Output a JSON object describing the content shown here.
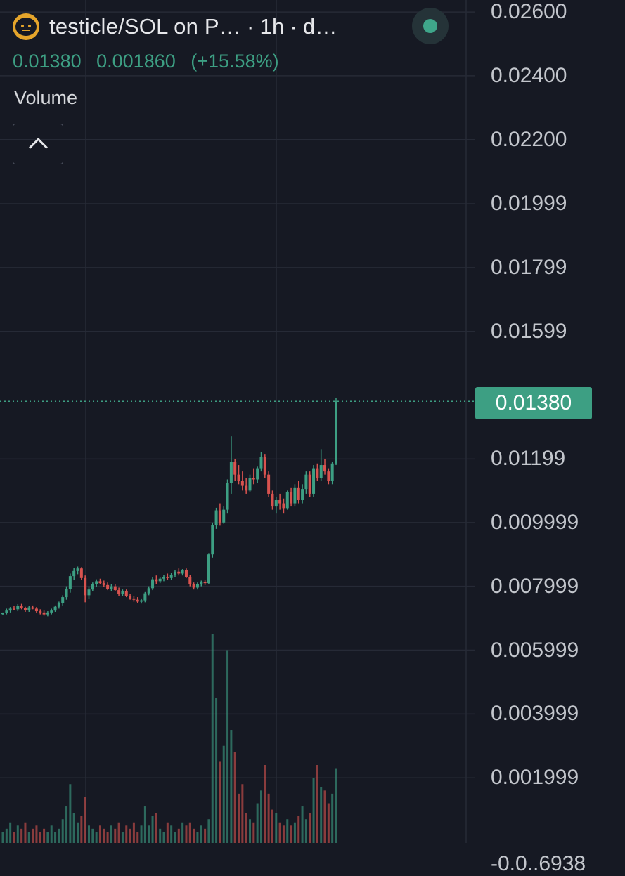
{
  "header": {
    "logo_icon": "token-face-icon",
    "title": "testicle/SOL on P…",
    "interval": "1h",
    "source": "d…",
    "status_icon": "live-status-dot-icon"
  },
  "quote": {
    "last": "0.01380",
    "change": "0.001860",
    "change_pct": "(+15.58%)"
  },
  "volume_label": "Volume",
  "collapse_icon": "chevron-up-icon",
  "last_price_label": "0.01380",
  "colors": {
    "up": "#3d9f83",
    "down": "#d9534f",
    "background": "#161923",
    "grid": "#262a36"
  },
  "chart_data": {
    "type": "candlestick",
    "y_tick_labels": [
      "0.02600",
      "0.02400",
      "0.02200",
      "0.01999",
      "0.01799",
      "0.01599",
      "0.01199",
      "0.009999",
      "0.007999",
      "0.005999",
      "0.003999",
      "0.001999",
      "-0.0..6938"
    ],
    "y_ticks": [
      0.026,
      0.024,
      0.022,
      0.01999,
      0.01799,
      0.01599,
      0.01199,
      0.009999,
      0.007999,
      0.005999,
      0.003999,
      0.001999,
      -0.0006938
    ],
    "ylim": [
      -0.0006938,
      0.026
    ],
    "last_price": 0.0138,
    "grid": true,
    "candles": [
      [
        0.00714,
        0.00718,
        0.0071,
        0.00716
      ],
      [
        0.00716,
        0.0073,
        0.00712,
        0.00724
      ],
      [
        0.00724,
        0.00735,
        0.00718,
        0.0073
      ],
      [
        0.0073,
        0.00738,
        0.00726,
        0.00728
      ],
      [
        0.00728,
        0.00744,
        0.00722,
        0.00738
      ],
      [
        0.00738,
        0.00745,
        0.00728,
        0.00732
      ],
      [
        0.00732,
        0.00736,
        0.0072,
        0.00726
      ],
      [
        0.00726,
        0.00738,
        0.0072,
        0.00734
      ],
      [
        0.00734,
        0.0074,
        0.00728,
        0.0073
      ],
      [
        0.0073,
        0.00735,
        0.00716,
        0.00722
      ],
      [
        0.00722,
        0.00728,
        0.00712,
        0.00718
      ],
      [
        0.00718,
        0.00724,
        0.00708,
        0.00712
      ],
      [
        0.00712,
        0.00722,
        0.00706,
        0.00718
      ],
      [
        0.00718,
        0.0073,
        0.00712,
        0.00724
      ],
      [
        0.00724,
        0.0074,
        0.0072,
        0.00736
      ],
      [
        0.00736,
        0.00752,
        0.0073,
        0.00748
      ],
      [
        0.00748,
        0.00772,
        0.0074,
        0.00766
      ],
      [
        0.00766,
        0.008,
        0.00758,
        0.00792
      ],
      [
        0.00792,
        0.0084,
        0.0078,
        0.00832
      ],
      [
        0.00832,
        0.00858,
        0.0082,
        0.00848
      ],
      [
        0.00848,
        0.00862,
        0.00838,
        0.00856
      ],
      [
        0.00856,
        0.0086,
        0.0082,
        0.00826
      ],
      [
        0.00826,
        0.00834,
        0.0075,
        0.00772
      ],
      [
        0.00772,
        0.008,
        0.0076,
        0.0079
      ],
      [
        0.0079,
        0.00812,
        0.00784,
        0.00806
      ],
      [
        0.00806,
        0.00822,
        0.00798,
        0.00816
      ],
      [
        0.00816,
        0.00824,
        0.00806,
        0.0081
      ],
      [
        0.0081,
        0.00818,
        0.00798,
        0.00804
      ],
      [
        0.00804,
        0.00812,
        0.00788,
        0.00792
      ],
      [
        0.00792,
        0.00808,
        0.00786,
        0.008
      ],
      [
        0.008,
        0.00806,
        0.00784,
        0.00788
      ],
      [
        0.00788,
        0.00796,
        0.0077,
        0.00776
      ],
      [
        0.00776,
        0.0079,
        0.0077,
        0.00784
      ],
      [
        0.00784,
        0.0079,
        0.00766,
        0.0077
      ],
      [
        0.0077,
        0.00776,
        0.00758,
        0.00762
      ],
      [
        0.00762,
        0.0077,
        0.00752,
        0.00758
      ],
      [
        0.00758,
        0.00766,
        0.00748,
        0.00752
      ],
      [
        0.00752,
        0.00762,
        0.00746,
        0.00756
      ],
      [
        0.00756,
        0.00782,
        0.0075,
        0.00778
      ],
      [
        0.00778,
        0.008,
        0.00772,
        0.00794
      ],
      [
        0.00794,
        0.0083,
        0.00788,
        0.00822
      ],
      [
        0.00822,
        0.00834,
        0.00808,
        0.00816
      ],
      [
        0.00816,
        0.00828,
        0.0081,
        0.00824
      ],
      [
        0.00824,
        0.00836,
        0.00816,
        0.0083
      ],
      [
        0.0083,
        0.0084,
        0.0082,
        0.00826
      ],
      [
        0.00826,
        0.00842,
        0.0082,
        0.00836
      ],
      [
        0.00836,
        0.00852,
        0.00828,
        0.00846
      ],
      [
        0.00846,
        0.00856,
        0.00834,
        0.0084
      ],
      [
        0.0084,
        0.00854,
        0.00834,
        0.0085
      ],
      [
        0.0085,
        0.00856,
        0.00826,
        0.0083
      ],
      [
        0.0083,
        0.00836,
        0.008,
        0.00806
      ],
      [
        0.00806,
        0.00812,
        0.0079,
        0.00796
      ],
      [
        0.00796,
        0.00812,
        0.0079,
        0.00808
      ],
      [
        0.00808,
        0.00818,
        0.008,
        0.00814
      ],
      [
        0.00814,
        0.0082,
        0.00804,
        0.0081
      ],
      [
        0.0081,
        0.00904,
        0.00806,
        0.009
      ],
      [
        0.009,
        0.01,
        0.0089,
        0.00992
      ],
      [
        0.00992,
        0.01046,
        0.0098,
        0.01038
      ],
      [
        0.01038,
        0.0106,
        0.0099,
        0.01
      ],
      [
        0.01,
        0.0105,
        0.00996,
        0.0104
      ],
      [
        0.0104,
        0.01135,
        0.0103,
        0.01125
      ],
      [
        0.01125,
        0.0127,
        0.0109,
        0.0119
      ],
      [
        0.0119,
        0.012,
        0.0113,
        0.0115
      ],
      [
        0.0115,
        0.0118,
        0.0112,
        0.0113
      ],
      [
        0.0113,
        0.0116,
        0.011,
        0.01115
      ],
      [
        0.01115,
        0.0114,
        0.0109,
        0.011
      ],
      [
        0.011,
        0.0115,
        0.01095,
        0.0114
      ],
      [
        0.0114,
        0.0117,
        0.0112,
        0.01135
      ],
      [
        0.01135,
        0.01175,
        0.01125,
        0.0117
      ],
      [
        0.0117,
        0.0122,
        0.0116,
        0.01205
      ],
      [
        0.01205,
        0.01215,
        0.0114,
        0.0115
      ],
      [
        0.0115,
        0.0116,
        0.0108,
        0.0109
      ],
      [
        0.0109,
        0.011,
        0.0104,
        0.0105
      ],
      [
        0.0105,
        0.0108,
        0.0103,
        0.0107
      ],
      [
        0.0107,
        0.0109,
        0.0104,
        0.0106
      ],
      [
        0.0106,
        0.01075,
        0.0103,
        0.01045
      ],
      [
        0.01045,
        0.011,
        0.0104,
        0.01095
      ],
      [
        0.01095,
        0.0111,
        0.0105,
        0.0106
      ],
      [
        0.0106,
        0.0112,
        0.0105,
        0.0111
      ],
      [
        0.0111,
        0.0113,
        0.0106,
        0.0107
      ],
      [
        0.0107,
        0.0112,
        0.0106,
        0.01105
      ],
      [
        0.01105,
        0.0116,
        0.0109,
        0.0115
      ],
      [
        0.0115,
        0.0116,
        0.0108,
        0.0109
      ],
      [
        0.0109,
        0.0118,
        0.0108,
        0.0117
      ],
      [
        0.0117,
        0.01185,
        0.0113,
        0.0114
      ],
      [
        0.0114,
        0.0123,
        0.0113,
        0.0118
      ],
      [
        0.0118,
        0.012,
        0.0115,
        0.0116
      ],
      [
        0.0116,
        0.0117,
        0.0112,
        0.0113
      ],
      [
        0.0113,
        0.0119,
        0.0112,
        0.01185
      ],
      [
        0.01185,
        0.0139,
        0.0118,
        0.0138
      ]
    ],
    "volumes": [
      0.0003,
      0.0004,
      0.0006,
      0.0003,
      0.0005,
      0.0004,
      0.0006,
      0.0003,
      0.0004,
      0.0005,
      0.0003,
      0.0004,
      0.0003,
      0.0005,
      0.0003,
      0.0004,
      0.0007,
      0.0011,
      0.0018,
      0.0009,
      0.0006,
      0.0008,
      0.0014,
      0.0005,
      0.0004,
      0.0003,
      0.0005,
      0.0004,
      0.0003,
      0.0005,
      0.0004,
      0.0006,
      0.0003,
      0.0005,
      0.0004,
      0.0006,
      0.0003,
      0.0005,
      0.0011,
      0.0005,
      0.0008,
      0.0009,
      0.0004,
      0.0003,
      0.0006,
      0.0005,
      0.0003,
      0.0004,
      0.0006,
      0.0005,
      0.0006,
      0.0004,
      0.0003,
      0.0005,
      0.0004,
      0.0007,
      0.0065,
      0.0045,
      0.0025,
      0.003,
      0.006,
      0.0035,
      0.0028,
      0.0015,
      0.0018,
      0.0009,
      0.0007,
      0.0006,
      0.0012,
      0.0016,
      0.0024,
      0.0015,
      0.001,
      0.0009,
      0.0006,
      0.0005,
      0.0007,
      0.0005,
      0.0006,
      0.0008,
      0.0011,
      0.0007,
      0.0009,
      0.002,
      0.0024,
      0.0017,
      0.0016,
      0.0012,
      0.0015,
      0.0023
    ]
  }
}
